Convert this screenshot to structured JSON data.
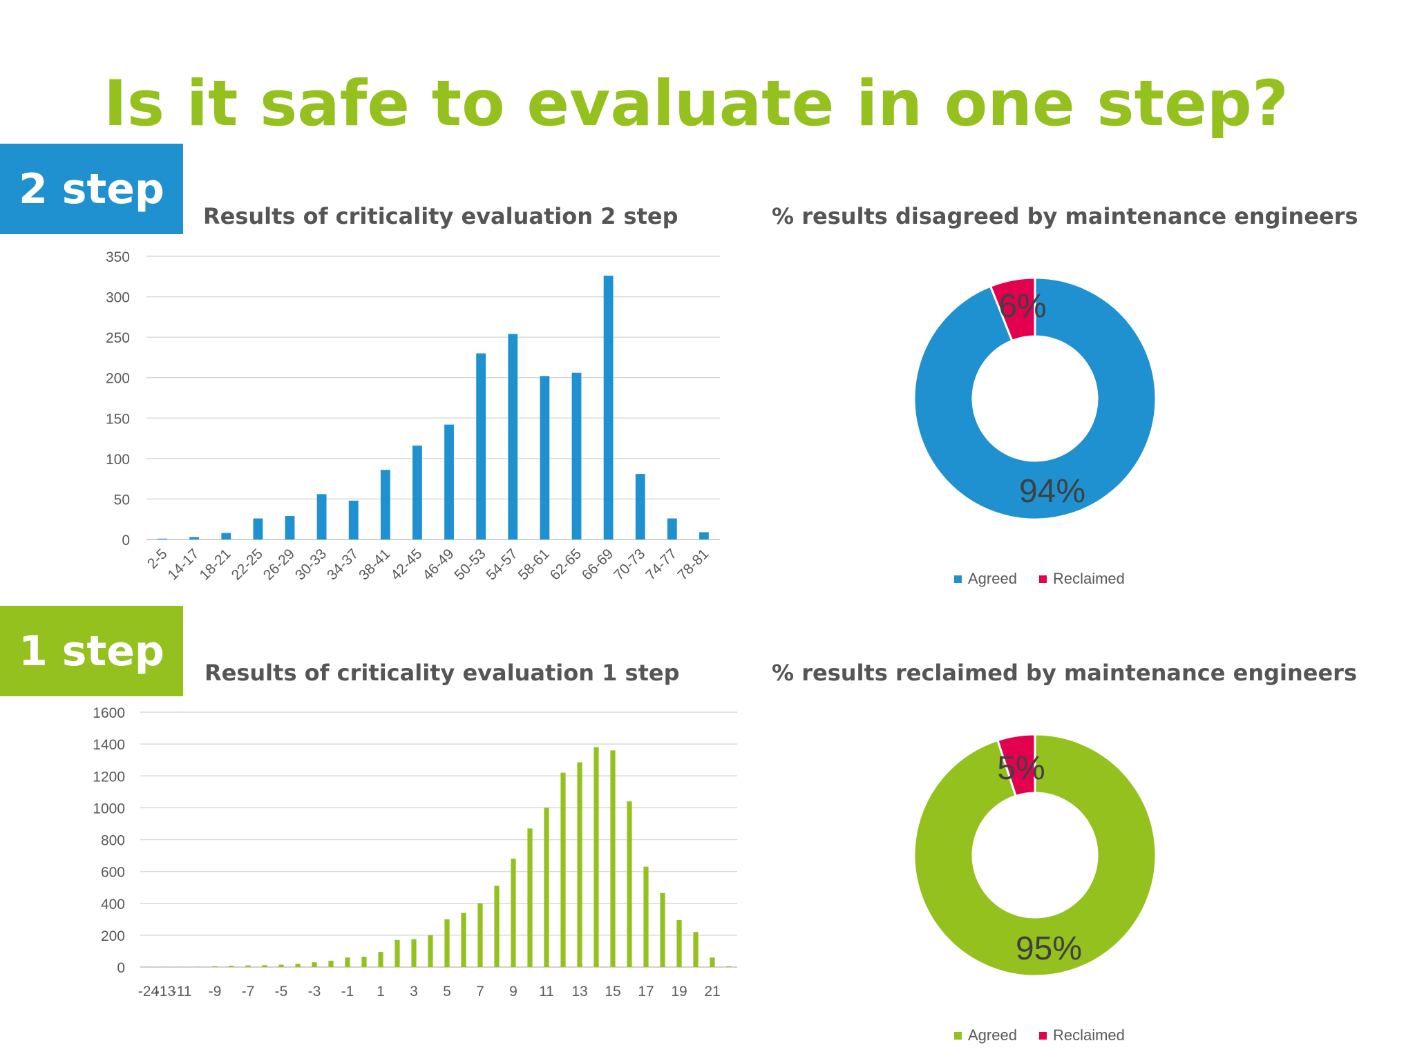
{
  "title": "Is it safe to evaluate in one step?",
  "colors": {
    "title_green": "#95c11f",
    "blue": "#1f91d0",
    "green": "#95c11f",
    "red": "#e3004f"
  },
  "sections": {
    "two_step": {
      "label": "2 step"
    },
    "one_step": {
      "label": "1 step"
    }
  },
  "chart_data": [
    {
      "id": "bar2",
      "type": "bar",
      "title": "Results of criticality evaluation 2 step",
      "categories": [
        "2-5",
        "14-17",
        "18-21",
        "22-25",
        "26-29",
        "30-33",
        "34-37",
        "38-41",
        "42-45",
        "46-49",
        "50-53",
        "54-57",
        "58-61",
        "62-65",
        "66-69",
        "70-73",
        "74-77",
        "78-81"
      ],
      "values": [
        1,
        3,
        8,
        26,
        29,
        56,
        48,
        86,
        116,
        142,
        230,
        254,
        202,
        206,
        326,
        81,
        26,
        9
      ],
      "ylim": [
        0,
        350
      ],
      "yticks": [
        0,
        50,
        100,
        150,
        200,
        250,
        300,
        350
      ],
      "xlabel": "",
      "ylabel": "",
      "grid": true,
      "color": "#1f91d0"
    },
    {
      "id": "donut2",
      "type": "pie",
      "title": "% results disagreed by maintenance engineers",
      "labels": [
        "Agreed",
        "Reclaimed"
      ],
      "values": [
        94,
        6
      ],
      "data_labels": [
        "94%",
        "6%"
      ],
      "colors": [
        "#1f91d0",
        "#e3004f"
      ],
      "legend": "bottom"
    },
    {
      "id": "bar1",
      "type": "bar",
      "title": "Results of criticality evaluation 1 step",
      "categories": [
        "-24",
        "-13",
        "-11",
        "-10",
        "-9",
        "-8",
        "-7",
        "-6",
        "-5",
        "-4",
        "-3",
        "-2",
        "-1",
        "0",
        "1",
        "2",
        "3",
        "4",
        "5",
        "6",
        "7",
        "8",
        "9",
        "10",
        "11",
        "12",
        "13",
        "14",
        "15",
        "16",
        "17",
        "18",
        "19",
        "20",
        "21",
        "22"
      ],
      "tick_labels": [
        "-24",
        "-13",
        "-11",
        "-9",
        "-7",
        "-5",
        "-3",
        "-1",
        "1",
        "3",
        "5",
        "7",
        "9",
        "11",
        "13",
        "15",
        "17",
        "19",
        "21"
      ],
      "values": [
        1,
        1,
        1,
        2,
        5,
        8,
        10,
        12,
        15,
        20,
        30,
        40,
        60,
        65,
        95,
        170,
        175,
        200,
        300,
        340,
        400,
        510,
        680,
        870,
        1000,
        1220,
        1285,
        1380,
        1360,
        1040,
        630,
        465,
        295,
        220,
        60,
        5
      ],
      "ylim": [
        0,
        1600
      ],
      "yticks": [
        0,
        200,
        400,
        600,
        800,
        1000,
        1200,
        1400,
        1600
      ],
      "xlabel": "",
      "ylabel": "",
      "grid": true,
      "color": "#95c11f"
    },
    {
      "id": "donut1",
      "type": "pie",
      "title": "% results reclaimed by maintenance engineers",
      "labels": [
        "Agreed",
        "Reclaimed"
      ],
      "values": [
        95,
        5
      ],
      "data_labels": [
        "95%",
        "5%"
      ],
      "colors": [
        "#95c11f",
        "#e3004f"
      ],
      "legend": "bottom"
    }
  ]
}
